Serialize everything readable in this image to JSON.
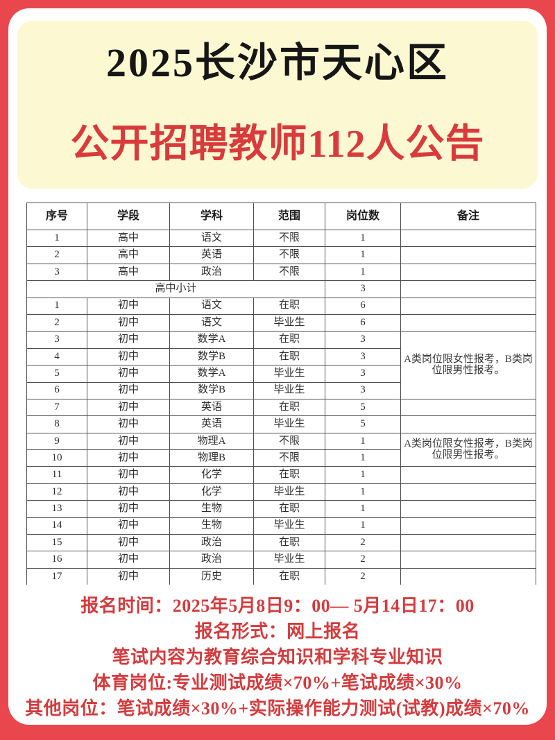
{
  "header": {
    "title_line1": "2025长沙市天心区",
    "title_line2": "公开招聘教师112人公告"
  },
  "table": {
    "columns": [
      "序号",
      "学段",
      "学科",
      "范围",
      "岗位数",
      "备注"
    ],
    "rows": [
      {
        "no": "1",
        "stage": "高中",
        "subject": "语文",
        "scope": "不限",
        "count": "1",
        "remark": "",
        "remark_span": 1
      },
      {
        "no": "2",
        "stage": "高中",
        "subject": "英语",
        "scope": "不限",
        "count": "1",
        "remark": "",
        "remark_span": 1
      },
      {
        "no": "3",
        "stage": "高中",
        "subject": "政治",
        "scope": "不限",
        "count": "1",
        "remark": "",
        "remark_span": 1
      },
      {
        "type": "subtotal",
        "label": "高中小计",
        "count": "3",
        "remark": ""
      },
      {
        "no": "1",
        "stage": "初中",
        "subject": "语文",
        "scope": "在职",
        "count": "6",
        "remark": "",
        "remark_span": 1
      },
      {
        "no": "2",
        "stage": "初中",
        "subject": "语文",
        "scope": "毕业生",
        "count": "6",
        "remark": "",
        "remark_span": 1
      },
      {
        "no": "3",
        "stage": "初中",
        "subject": "数学A",
        "scope": "在职",
        "count": "3",
        "remark": "A类岗位限女性报考，B类岗位限男性报考。",
        "remark_span": 4
      },
      {
        "no": "4",
        "stage": "初中",
        "subject": "数学B",
        "scope": "在职",
        "count": "3",
        "remark_span": 0
      },
      {
        "no": "5",
        "stage": "初中",
        "subject": "数学A",
        "scope": "毕业生",
        "count": "3",
        "remark_span": 0
      },
      {
        "no": "6",
        "stage": "初中",
        "subject": "数学B",
        "scope": "毕业生",
        "count": "3",
        "remark_span": 0
      },
      {
        "no": "7",
        "stage": "初中",
        "subject": "英语",
        "scope": "在职",
        "count": "5",
        "remark": "",
        "remark_span": 1
      },
      {
        "no": "8",
        "stage": "初中",
        "subject": "英语",
        "scope": "毕业生",
        "count": "5",
        "remark": "",
        "remark_span": 1
      },
      {
        "no": "9",
        "stage": "初中",
        "subject": "物理A",
        "scope": "不限",
        "count": "1",
        "remark": "A类岗位限女性报考，B类岗位限男性报考。",
        "remark_span": 2
      },
      {
        "no": "10",
        "stage": "初中",
        "subject": "物理B",
        "scope": "不限",
        "count": "1",
        "remark_span": 0
      },
      {
        "no": "11",
        "stage": "初中",
        "subject": "化学",
        "scope": "在职",
        "count": "1",
        "remark": "",
        "remark_span": 1
      },
      {
        "no": "12",
        "stage": "初中",
        "subject": "化学",
        "scope": "毕业生",
        "count": "1",
        "remark": "",
        "remark_span": 1
      },
      {
        "no": "13",
        "stage": "初中",
        "subject": "生物",
        "scope": "在职",
        "count": "1",
        "remark": "",
        "remark_span": 1
      },
      {
        "no": "14",
        "stage": "初中",
        "subject": "生物",
        "scope": "毕业生",
        "count": "1",
        "remark": "",
        "remark_span": 1
      },
      {
        "no": "15",
        "stage": "初中",
        "subject": "政治",
        "scope": "在职",
        "count": "2",
        "remark": "",
        "remark_span": 1
      },
      {
        "no": "16",
        "stage": "初中",
        "subject": "政治",
        "scope": "毕业生",
        "count": "2",
        "remark": "",
        "remark_span": 1
      },
      {
        "no": "17",
        "stage": "初中",
        "subject": "历史",
        "scope": "在职",
        "count": "2",
        "remark": "",
        "remark_span": 1
      }
    ]
  },
  "footer": {
    "lines": [
      "报名时间：2025年5月8日9：00— 5月14日17：00",
      "报名形式：网上报名",
      "笔试内容为教育综合知识和学科专业知识",
      "体育岗位:专业测试成绩×70%+笔试成绩×30%",
      "其他岗位：笔试成绩×30%+实际操作能力测试(试教)成绩×70%"
    ]
  },
  "colors": {
    "page_border_red": "#e9474d",
    "title_red": "#d93a3c",
    "footer_red": "#d43b3d",
    "header_card_yellow": "#fbf8d2",
    "title_black": "#161616",
    "table_line": "#4f4f4f"
  }
}
